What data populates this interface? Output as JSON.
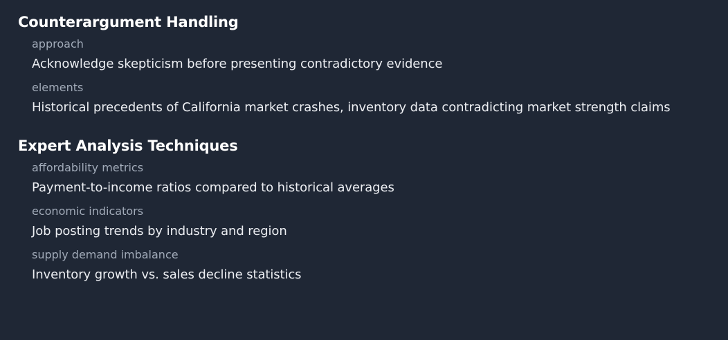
{
  "sections": [
    {
      "title": "Counterargument Handling",
      "items": [
        {
          "key": "approach",
          "value": "Acknowledge skepticism before presenting contradictory evidence"
        },
        {
          "key": "elements",
          "value": "Historical precedents of California market crashes, inventory data contradicting market strength claims"
        }
      ]
    },
    {
      "title": "Expert Analysis Techniques",
      "items": [
        {
          "key": "affordability metrics",
          "value": "Payment-to-income ratios compared to historical averages"
        },
        {
          "key": "economic indicators",
          "value": "Job posting trends by industry and region"
        },
        {
          "key": "supply demand imbalance",
          "value": "Inventory growth vs. sales decline statistics"
        }
      ]
    }
  ],
  "colors": {
    "background": "#1f2735",
    "heading": "#ffffff",
    "key": "#a2abb9",
    "value": "#eceef2"
  }
}
